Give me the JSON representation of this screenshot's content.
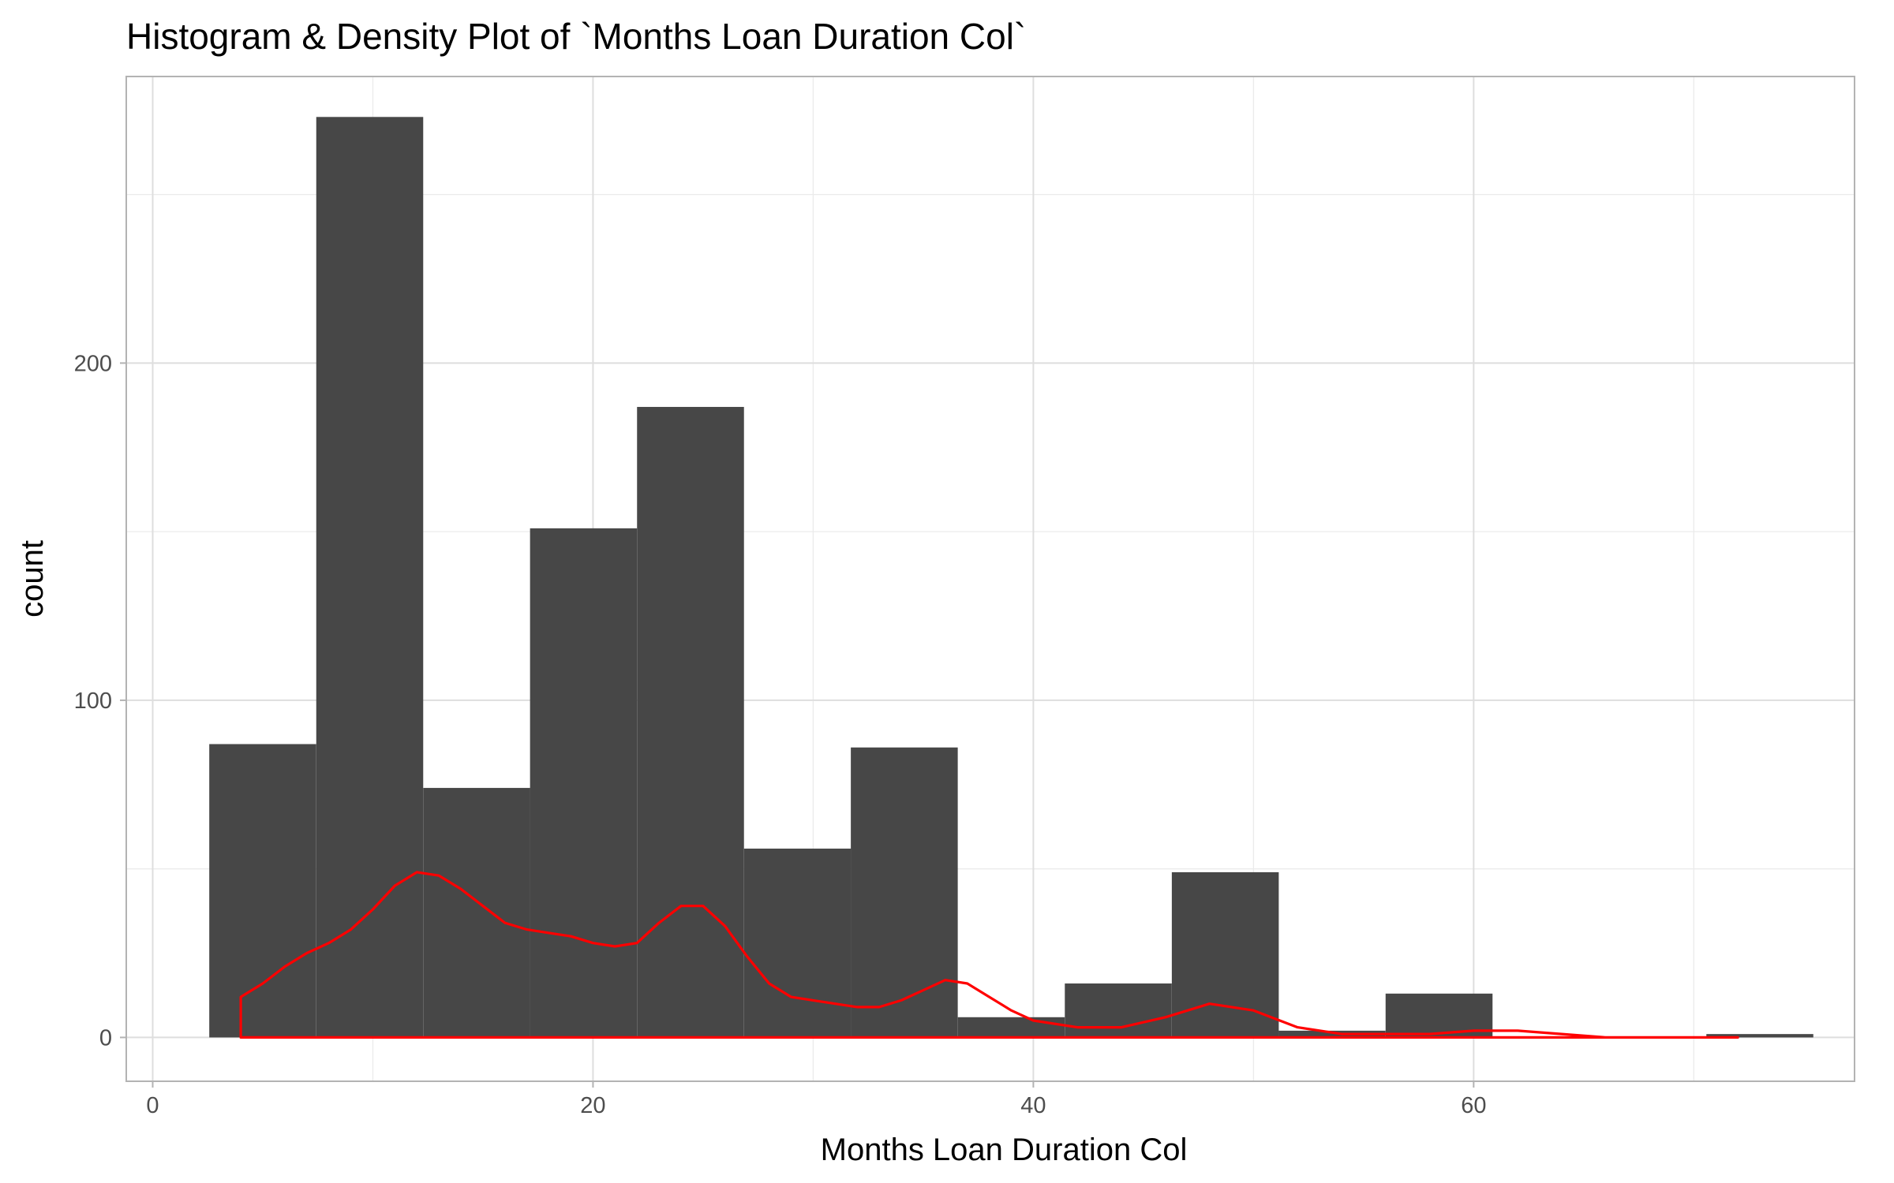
{
  "chart_data": {
    "type": "bar",
    "title": "Histogram & Density Plot of `Months Loan Duration Col`",
    "xlabel": "Months Loan Duration Col",
    "ylabel": "count",
    "xlim": [
      -1.2,
      77.3
    ],
    "ylim": [
      -13,
      285
    ],
    "x_ticks": [
      0,
      20,
      40,
      60
    ],
    "y_ticks": [
      0,
      100,
      200
    ],
    "x_minor_grid": [
      10,
      30,
      50,
      70
    ],
    "y_minor_grid": [
      50,
      150,
      250
    ],
    "grid": true,
    "legend": "none",
    "bin_width": 4.857,
    "series": [
      {
        "type": "histogram",
        "bin_starts": [
          2.57,
          7.43,
          12.29,
          17.14,
          22.0,
          26.86,
          31.71,
          36.57,
          41.43,
          46.29,
          51.14,
          56.0,
          60.86,
          65.71,
          70.57
        ],
        "values": [
          87,
          273,
          74,
          151,
          187,
          56,
          86,
          6,
          16,
          49,
          2,
          13,
          0,
          0,
          1
        ]
      },
      {
        "type": "density",
        "x": [
          4,
          5,
          6,
          7,
          8,
          9,
          10,
          11,
          12,
          13,
          14,
          15,
          16,
          17,
          18,
          19,
          20,
          21,
          22,
          23,
          24,
          25,
          26,
          27,
          28,
          29,
          30,
          31,
          32,
          33,
          34,
          35,
          36,
          37,
          38,
          39,
          40,
          42,
          44,
          46,
          48,
          50,
          52,
          54,
          56,
          58,
          60,
          62,
          64,
          66,
          68,
          70,
          72
        ],
        "y": [
          12,
          16,
          21,
          25,
          28,
          32,
          38,
          45,
          49,
          48,
          44,
          39,
          34,
          32,
          31,
          30,
          28,
          27,
          28,
          34,
          39,
          39,
          33,
          24,
          16,
          12,
          11,
          10,
          9,
          9,
          11,
          14,
          17,
          16,
          12,
          8,
          5,
          3,
          3,
          6,
          10,
          8,
          3,
          1,
          1,
          1,
          2,
          2,
          1,
          0,
          0,
          0,
          0
        ]
      }
    ]
  }
}
